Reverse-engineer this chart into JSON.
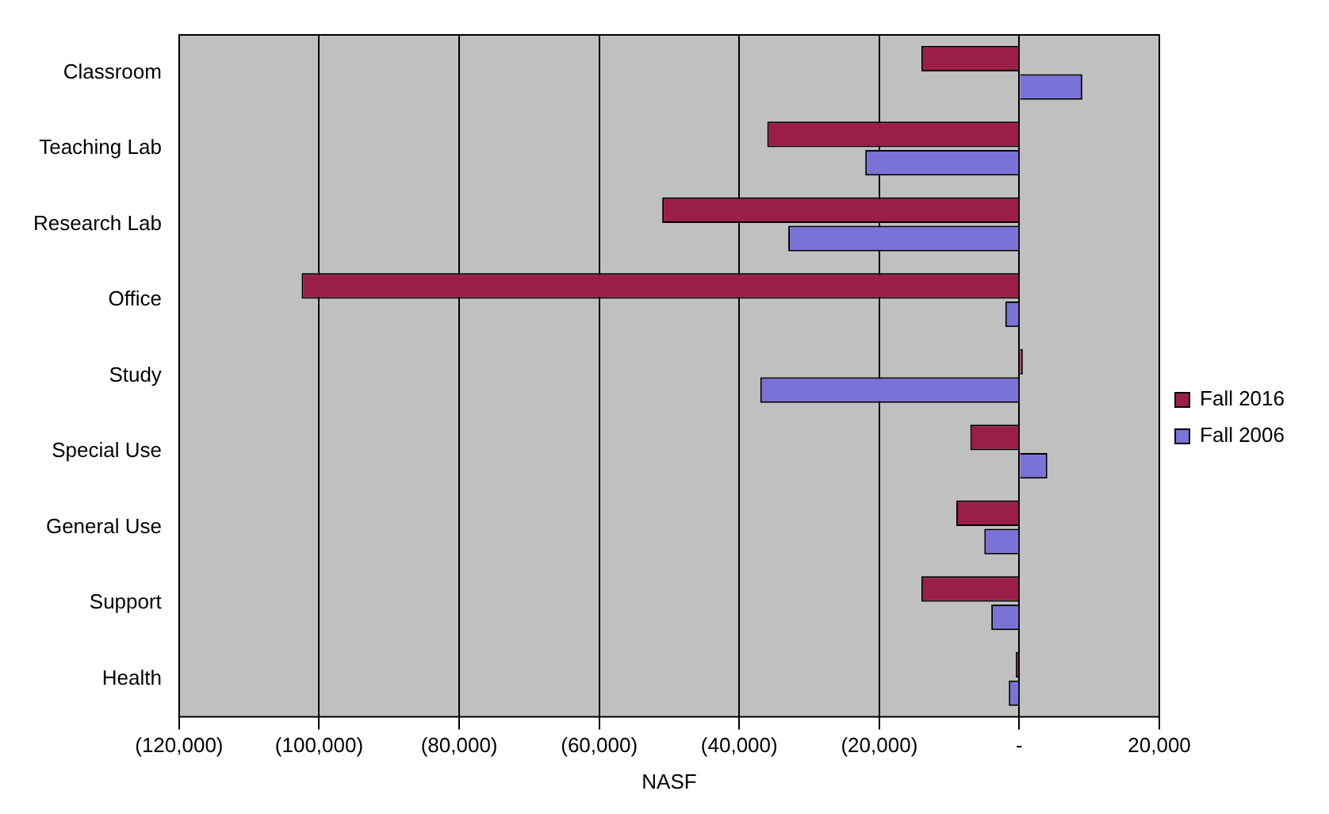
{
  "chart_data": {
    "type": "bar",
    "orientation": "horizontal",
    "xlabel": "NASF",
    "categories": [
      "Classroom",
      "Teaching Lab",
      "Research Lab",
      "Office",
      "Study",
      "Special Use",
      "General Use",
      "Support",
      "Health"
    ],
    "series": [
      {
        "name": "Fall 2016",
        "color": "#9b1e4a",
        "values": [
          -14000,
          -36000,
          -51000,
          -102500,
          500,
          -7000,
          -9000,
          -14000,
          -500
        ]
      },
      {
        "name": "Fall 2006",
        "color": "#7b72d8",
        "values": [
          9000,
          -22000,
          -33000,
          -2000,
          -37000,
          4000,
          -5000,
          -4000,
          -1500
        ]
      }
    ],
    "xlim": [
      -120000,
      20000
    ],
    "xticks": [
      {
        "value": -120000,
        "label": "(120,000)"
      },
      {
        "value": -100000,
        "label": "(100,000)"
      },
      {
        "value": -80000,
        "label": "(80,000)"
      },
      {
        "value": -60000,
        "label": "(60,000)"
      },
      {
        "value": -40000,
        "label": "(40,000)"
      },
      {
        "value": -20000,
        "label": "(20,000)"
      },
      {
        "value": 0,
        "label": "-"
      },
      {
        "value": 20000,
        "label": "20,000"
      }
    ],
    "grid": "x",
    "legend": "right"
  }
}
